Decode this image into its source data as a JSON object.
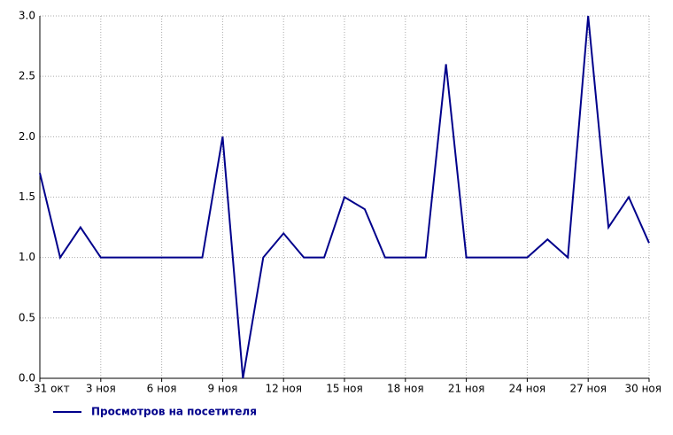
{
  "chart_data": {
    "type": "line",
    "categories": [
      "31 окт",
      null,
      null,
      "3 ноя",
      null,
      null,
      "6 ноя",
      null,
      null,
      "9 ноя",
      null,
      null,
      "12 ноя",
      null,
      null,
      "15 ноя",
      null,
      null,
      "18 ноя",
      null,
      null,
      "21 ноя",
      null,
      null,
      "24 ноя",
      null,
      null,
      "27 ноя",
      null,
      null,
      "30 ноя"
    ],
    "series": [
      {
        "name": "Просмотров на посетителя",
        "color": "#00008b",
        "values": [
          1.7,
          1.0,
          1.25,
          1.0,
          1.0,
          1.0,
          1.0,
          1.0,
          1.0,
          2.0,
          0.0,
          1.0,
          1.2,
          1.0,
          1.0,
          1.5,
          1.4,
          1.0,
          1.0,
          1.0,
          2.6,
          1.0,
          1.0,
          1.0,
          1.0,
          1.15,
          1.0,
          3.0,
          1.25,
          1.5,
          1.12
        ]
      }
    ],
    "ylim": [
      0,
      3
    ],
    "yticks": [
      {
        "value": 0,
        "label": "0.0"
      },
      {
        "value": 0.5,
        "label": "0.5"
      },
      {
        "value": 1,
        "label": "1.0"
      },
      {
        "value": 1.5,
        "label": "1.5"
      },
      {
        "value": 2,
        "label": "2.0"
      },
      {
        "value": 2.5,
        "label": "2.5"
      },
      {
        "value": 3,
        "label": "3.0"
      }
    ],
    "grid": true
  }
}
